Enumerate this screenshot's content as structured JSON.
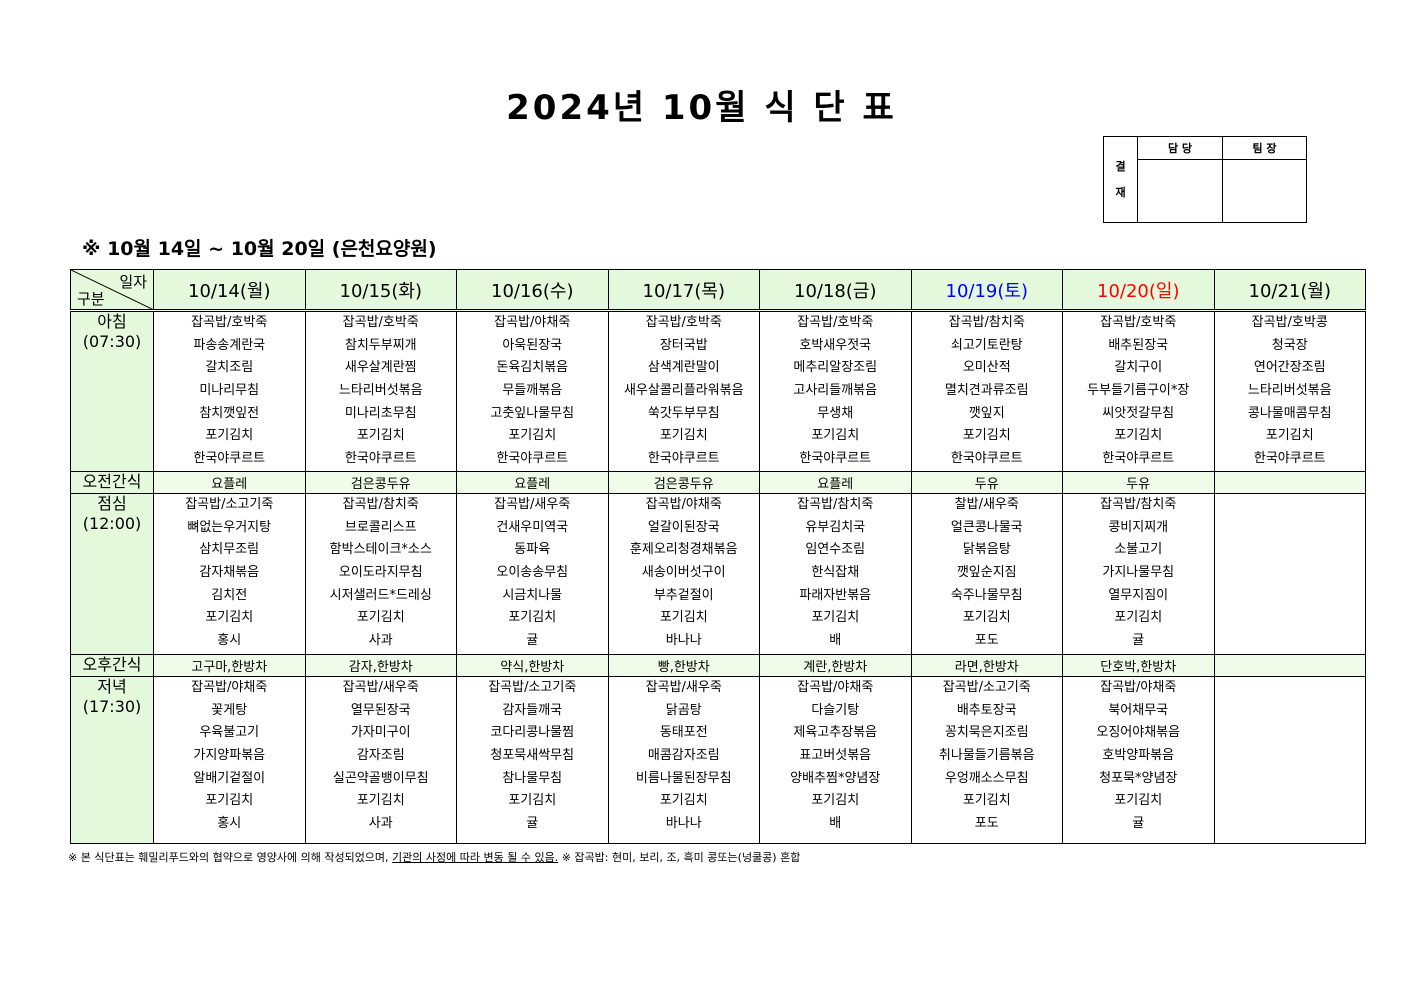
{
  "title": "2024년 10월 식 단 표",
  "approval": {
    "label": [
      "결",
      "재"
    ],
    "headers": [
      "담 당",
      "팀 장"
    ]
  },
  "subtitle": "※ 10월 14일 ~ 10월 20일 (은천요양원)",
  "corner": {
    "top": "일자",
    "bottom": "구분"
  },
  "colors": {
    "header_bg": "#e4f9dc",
    "saturday": "#0000ff",
    "sunday": "#ff0000"
  },
  "days": [
    {
      "label": "10/14(월)",
      "color": "#000000"
    },
    {
      "label": "10/15(화)",
      "color": "#000000"
    },
    {
      "label": "10/16(수)",
      "color": "#000000"
    },
    {
      "label": "10/17(목)",
      "color": "#000000"
    },
    {
      "label": "10/18(금)",
      "color": "#000000"
    },
    {
      "label": "10/19(토)",
      "color": "#0000ff"
    },
    {
      "label": "10/20(일)",
      "color": "#ff0000"
    },
    {
      "label": "10/21(월)",
      "color": "#000000"
    }
  ],
  "rows": [
    {
      "type": "meal",
      "name": "아침",
      "time": "(07:30)",
      "cells": [
        [
          "잡곡밥/호박죽",
          "파송송계란국",
          "갈치조림",
          "미나리무침",
          "참치깻잎전",
          "포기김치",
          "한국야쿠르트"
        ],
        [
          "잡곡밥/호박죽",
          "참치두부찌개",
          "새우살계란찜",
          "느타리버섯볶음",
          "미나리초무침",
          "포기김치",
          "한국야쿠르트"
        ],
        [
          "잡곡밥/야채죽",
          "아욱된장국",
          "돈육김치볶음",
          "무들깨볶음",
          "고춧잎나물무침",
          "포기김치",
          "한국야쿠르트"
        ],
        [
          "잡곡밥/호박죽",
          "장터국밥",
          "삼색계란말이",
          "새우살콜리플라워볶음",
          "쑥갓두부무침",
          "포기김치",
          "한국야쿠르트"
        ],
        [
          "잡곡밥/호박죽",
          "호박새우젓국",
          "메추리알장조림",
          "고사리들깨볶음",
          "무생채",
          "포기김치",
          "한국야쿠르트"
        ],
        [
          "잡곡밥/참치죽",
          "쇠고기토란탕",
          "오미산적",
          "멸치견과류조림",
          "깻잎지",
          "포기김치",
          "한국야쿠르트"
        ],
        [
          "잡곡밥/호박죽",
          "배추된장국",
          "갈치구이",
          "두부들기름구이*장",
          "씨앗젓갈무침",
          "포기김치",
          "한국야쿠르트"
        ],
        [
          "잡곡밥/호박콩",
          "청국장",
          "연어간장조림",
          "느타리버섯볶음",
          "콩나물매콤무침",
          "포기김치",
          "한국야쿠르트"
        ]
      ]
    },
    {
      "type": "snack",
      "name": "오전간식",
      "cells": [
        "요플레",
        "검은콩두유",
        "요플레",
        "검은콩두유",
        "요플레",
        "두유",
        "두유",
        ""
      ]
    },
    {
      "type": "meal",
      "name": "점심",
      "time": "(12:00)",
      "cells": [
        [
          "잡곡밥/소고기죽",
          "뼈없는우거지탕",
          "삼치무조림",
          "감자채볶음",
          "김치전",
          "포기김치",
          "홍시"
        ],
        [
          "잡곡밥/참치죽",
          "브로콜리스프",
          "함박스테이크*소스",
          "오이도라지무침",
          "시저샐러드*드레싱",
          "포기김치",
          "사과"
        ],
        [
          "잡곡밥/새우죽",
          "건새우미역국",
          "동파육",
          "오이송송무침",
          "시금치나물",
          "포기김치",
          "귤"
        ],
        [
          "잡곡밥/야채죽",
          "얼갈이된장국",
          "훈제오리청경채볶음",
          "새송이버섯구이",
          "부추겉절이",
          "포기김치",
          "바나나"
        ],
        [
          "잡곡밥/참치죽",
          "유부김치국",
          "임연수조림",
          "한식잡채",
          "파래자반볶음",
          "포기김치",
          "배"
        ],
        [
          "찰밥/새우죽",
          "얼큰콩나물국",
          "닭볶음탕",
          "깻잎순지짐",
          "숙주나물무침",
          "포기김치",
          "포도"
        ],
        [
          "잡곡밥/참치죽",
          "콩비지찌개",
          "소불고기",
          "가지나물무침",
          "열무지짐이",
          "포기김치",
          "귤"
        ],
        []
      ]
    },
    {
      "type": "snack",
      "name": "오후간식",
      "cells": [
        "고구마,한방차",
        "감자,한방차",
        "약식,한방차",
        "빵,한방차",
        "계란,한방차",
        "라면,한방차",
        "단호박,한방차",
        ""
      ]
    },
    {
      "type": "meal",
      "name": "저녁",
      "time": "(17:30)",
      "cells": [
        [
          "잡곡밥/야채죽",
          "꽃게탕",
          "우육불고기",
          "가지양파볶음",
          "알배기겉절이",
          "포기김치",
          "홍시"
        ],
        [
          "잡곡밥/새우죽",
          "열무된장국",
          "가자미구이",
          "감자조림",
          "실곤약골뱅이무침",
          "포기김치",
          "사과"
        ],
        [
          "잡곡밥/소고기죽",
          "감자들깨국",
          "코다리콩나물찜",
          "청포묵새싹무침",
          "참나물무침",
          "포기김치",
          "귤"
        ],
        [
          "잡곡밥/새우죽",
          "닭곰탕",
          "동태포전",
          "매콤감자조림",
          "비름나물된장무침",
          "포기김치",
          "바나나"
        ],
        [
          "잡곡밥/야채죽",
          "다슬기탕",
          "제육고추장볶음",
          "표고버섯볶음",
          "양배추찜*양념장",
          "포기김치",
          "배"
        ],
        [
          "잡곡밥/소고기죽",
          "배추토장국",
          "꽁치묵은지조림",
          "취나물들기름볶음",
          "우엉깨소스무침",
          "포기김치",
          "포도"
        ],
        [
          "잡곡밥/야채죽",
          "북어채무국",
          "오징어야채볶음",
          "호박양파볶음",
          "청포묵*양념장",
          "포기김치",
          "귤"
        ],
        []
      ]
    }
  ],
  "footnote": {
    "part1": "※ 본 식단표는 훼밀리푸드와의 협약으로 영양사에 의해 작성되었으며, ",
    "underlined": "기관의 사정에 따라 변동 될 수 있음.",
    "part2": " ※ 잡곡밥: 현미, 보리, 조, 흑미 콩또는(넝쿨콩) 혼합"
  }
}
